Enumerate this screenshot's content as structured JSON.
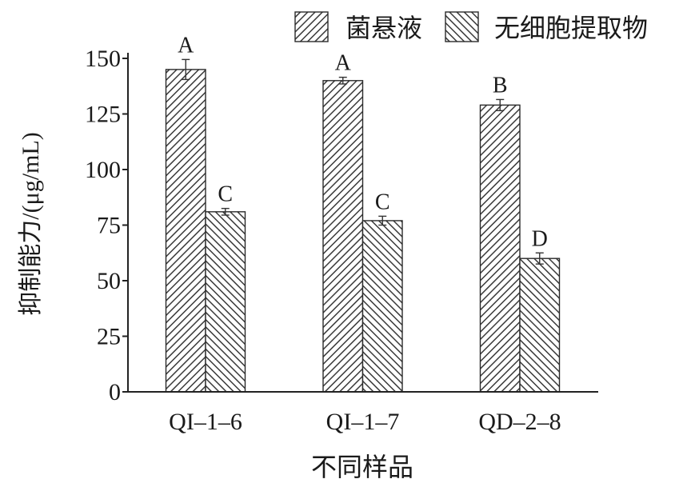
{
  "chart_data": {
    "type": "bar",
    "categories": [
      "QI–1–6",
      "QI–1–7",
      "QD–2–8"
    ],
    "series": [
      {
        "name": "菌悬液",
        "values": [
          145,
          140,
          129
        ],
        "errors": [
          4.5,
          1.5,
          2.5
        ],
        "significance": [
          "A",
          "A",
          "B"
        ],
        "pattern": "forward-hatch"
      },
      {
        "name": "无细胞提取物",
        "values": [
          81,
          77,
          60
        ],
        "errors": [
          1.5,
          2,
          2.5
        ],
        "significance": [
          "C",
          "C",
          "D"
        ],
        "pattern": "backward-hatch"
      }
    ],
    "xlabel": "不同样品",
    "ylabel": "抑制能力/(μg/mL)",
    "ylim": [
      0,
      150
    ],
    "yticks": [
      0,
      25,
      50,
      75,
      100,
      125,
      150
    ],
    "grid": false,
    "legend": "top-right"
  }
}
